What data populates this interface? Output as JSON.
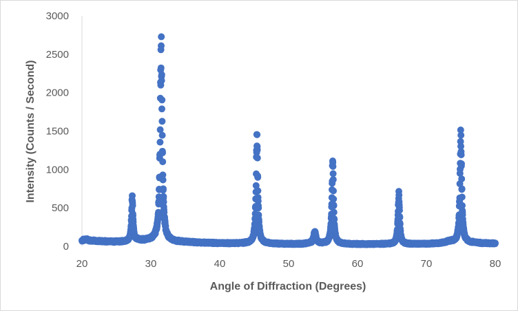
{
  "chart_data": {
    "type": "scatter",
    "title": "",
    "xlabel": "Angle of Diffraction (Degrees)",
    "ylabel": "Intensity (Counts / Second)",
    "xlim": [
      20,
      80
    ],
    "ylim": [
      0,
      3000
    ],
    "x_ticks": [
      20,
      30,
      40,
      50,
      60,
      70,
      80
    ],
    "y_ticks": [
      0,
      500,
      1000,
      1500,
      2000,
      2500,
      3000
    ],
    "x_tick_labels": [
      "20",
      "30",
      "40",
      "50",
      "60",
      "70",
      "80"
    ],
    "y_tick_labels": [
      "0",
      "500",
      "1000",
      "1500",
      "2000",
      "2500",
      "3000"
    ],
    "grid": false,
    "legend": "none",
    "marker_color": "#4472C4",
    "baseline": [
      [
        20.0,
        75
      ],
      [
        20.5,
        90
      ],
      [
        21.0,
        80
      ],
      [
        22.0,
        70
      ],
      [
        23.0,
        65
      ],
      [
        24.0,
        62
      ],
      [
        25.0,
        60
      ],
      [
        26.0,
        60
      ],
      [
        27.0,
        70
      ],
      [
        28.0,
        80
      ],
      [
        29.0,
        75
      ],
      [
        30.0,
        80
      ],
      [
        33.0,
        60
      ],
      [
        35.0,
        55
      ],
      [
        38.0,
        45
      ],
      [
        40.0,
        40
      ],
      [
        42.0,
        38
      ],
      [
        44.0,
        40
      ],
      [
        47.0,
        35
      ],
      [
        50.0,
        30
      ],
      [
        52.0,
        30
      ],
      [
        53.0,
        40
      ],
      [
        55.0,
        35
      ],
      [
        58.0,
        30
      ],
      [
        60.0,
        28
      ],
      [
        62.0,
        28
      ],
      [
        64.0,
        30
      ],
      [
        68.0,
        30
      ],
      [
        70.0,
        32
      ],
      [
        72.0,
        40
      ],
      [
        73.5,
        65
      ],
      [
        74.5,
        50
      ],
      [
        76.0,
        50
      ],
      [
        78.0,
        40
      ],
      [
        80.0,
        38
      ]
    ],
    "peaks": [
      {
        "center": 27.3,
        "height": 560,
        "width": 0.12
      },
      {
        "center": 31.5,
        "height": 2470,
        "width": 0.18
      },
      {
        "center": 45.4,
        "height": 1350,
        "width": 0.15
      },
      {
        "center": 53.8,
        "height": 140,
        "width": 0.2
      },
      {
        "center": 56.4,
        "height": 1010,
        "width": 0.15
      },
      {
        "center": 66.0,
        "height": 640,
        "width": 0.14
      },
      {
        "center": 75.0,
        "height": 1370,
        "width": 0.15
      }
    ],
    "step": 0.02
  }
}
